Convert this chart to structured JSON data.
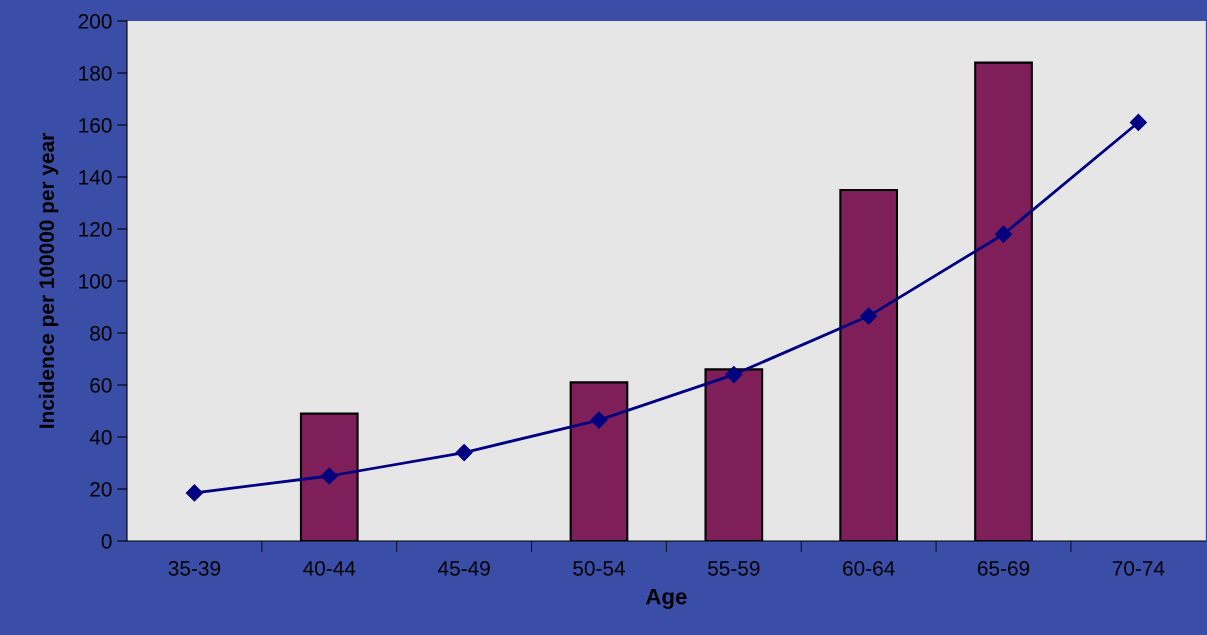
{
  "chart_data": {
    "type": "bar",
    "xlabel": "Age",
    "ylabel": "Incidence per 100000 per year",
    "categories": [
      "35-39",
      "40-44",
      "45-49",
      "50-54",
      "55-59",
      "60-64",
      "65-69",
      "70-74"
    ],
    "series": [
      {
        "color": "#7f1f5a",
        "values": [
          null,
          49,
          null,
          61,
          66,
          135,
          184,
          null
        ]
      },
      {
        "type": "line",
        "color": "#000080",
        "marker": "diamond",
        "line_style": "solid",
        "values": [
          18.5,
          25,
          34,
          46.5,
          64,
          86.5,
          118,
          161
        ]
      }
    ],
    "ylim": [
      0,
      200
    ],
    "yticks": [
      0,
      20,
      40,
      60,
      80,
      100,
      120,
      140,
      160,
      180,
      200
    ],
    "grid": false,
    "legend": false
  }
}
